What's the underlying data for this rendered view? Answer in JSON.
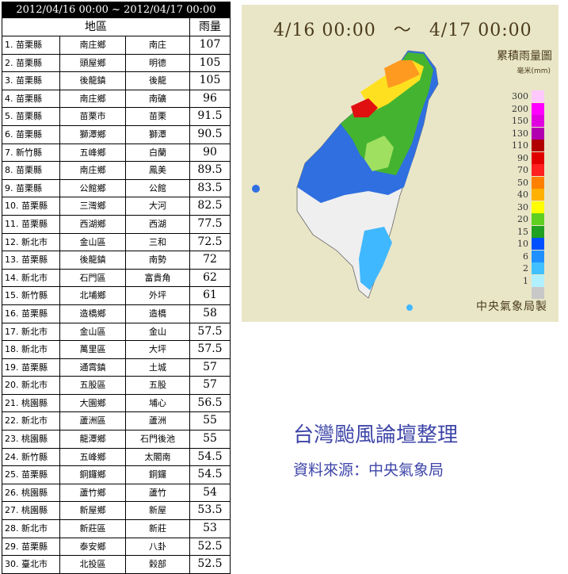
{
  "table": {
    "date_range": "2012/04/16 00:00 ~ 2012/04/17 00:00",
    "col_area": "地區",
    "col_rain": "雨量",
    "rows": [
      [
        "1. 苗栗縣",
        "南庄鄉",
        "南庄",
        "107"
      ],
      [
        "2. 苗栗縣",
        "頭屋鄉",
        "明德",
        "105"
      ],
      [
        "3. 苗栗縣",
        "後龍鎮",
        "後龍",
        "105"
      ],
      [
        "4. 苗栗縣",
        "南庄鄉",
        "南礦",
        "96"
      ],
      [
        "5. 苗栗縣",
        "苗栗市",
        "苗栗",
        "91.5"
      ],
      [
        "6. 苗栗縣",
        "獅潭鄉",
        "獅潭",
        "90.5"
      ],
      [
        "7. 新竹縣",
        "五峰鄉",
        "白蘭",
        "90"
      ],
      [
        "8. 苗栗縣",
        "南庄鄉",
        "鳳美",
        "89.5"
      ],
      [
        "9. 苗栗縣",
        "公館鄉",
        "公館",
        "83.5"
      ],
      [
        "10. 苗栗縣",
        "三灣鄉",
        "大河",
        "82.5"
      ],
      [
        "11. 苗栗縣",
        "西湖鄉",
        "西湖",
        "77.5"
      ],
      [
        "12. 新北市",
        "金山區",
        "三和",
        "72.5"
      ],
      [
        "13. 苗栗縣",
        "後龍鎮",
        "南勢",
        "72"
      ],
      [
        "14. 新北市",
        "石門區",
        "富貴角",
        "62"
      ],
      [
        "15. 新竹縣",
        "北埔鄉",
        "外坪",
        "61"
      ],
      [
        "16. 苗栗縣",
        "造橋鄉",
        "造橋",
        "58"
      ],
      [
        "17. 新北市",
        "金山區",
        "金山",
        "57.5"
      ],
      [
        "18. 新北市",
        "萬里區",
        "大坪",
        "57.5"
      ],
      [
        "19. 苗栗縣",
        "通霄鎮",
        "土城",
        "57"
      ],
      [
        "20. 新北市",
        "五股區",
        "五股",
        "57"
      ],
      [
        "21. 桃園縣",
        "大園鄉",
        "埔心",
        "56.5"
      ],
      [
        "22. 新北市",
        "蘆洲區",
        "蘆洲",
        "55"
      ],
      [
        "23. 桃園縣",
        "龍潭鄉",
        "石門後池",
        "55"
      ],
      [
        "24. 新竹縣",
        "五峰鄉",
        "太閣南",
        "54.5"
      ],
      [
        "25. 苗栗縣",
        "銅鑼鄉",
        "銅鑼",
        "54.5"
      ],
      [
        "26. 桃園縣",
        "蘆竹鄉",
        "蘆竹",
        "54"
      ],
      [
        "27. 桃園縣",
        "新屋鄉",
        "新屋",
        "53.5"
      ],
      [
        "28. 新北市",
        "新莊區",
        "新莊",
        "53"
      ],
      [
        "29. 苗栗縣",
        "泰安鄉",
        "八卦",
        "52.5"
      ],
      [
        "30. 臺北市",
        "北投區",
        "榖部",
        "52.5"
      ]
    ]
  },
  "map": {
    "title_start": "4/16 00:00",
    "title_sep": "～",
    "title_end": "4/17 00:00",
    "legend_title": "累積雨量圖",
    "legend_unit": "毫米(mm)",
    "credit": "中央氣象局製",
    "scale": [
      {
        "label": "300",
        "color": "#ffc8ff"
      },
      {
        "label": "200",
        "color": "#ff00ff"
      },
      {
        "label": "150",
        "color": "#e000e0"
      },
      {
        "label": "130",
        "color": "#b000b0"
      },
      {
        "label": "110",
        "color": "#b00000"
      },
      {
        "label": "90",
        "color": "#e00000"
      },
      {
        "label": "70",
        "color": "#ff2020"
      },
      {
        "label": "50",
        "color": "#ff8000"
      },
      {
        "label": "40",
        "color": "#ffb000"
      },
      {
        "label": "30",
        "color": "#ffff00"
      },
      {
        "label": "20",
        "color": "#60d020"
      },
      {
        "label": "15",
        "color": "#20a020"
      },
      {
        "label": "10",
        "color": "#0050ff"
      },
      {
        "label": "6",
        "color": "#2090ff"
      },
      {
        "label": "2",
        "color": "#40c0ff"
      },
      {
        "label": "1",
        "color": "#b0f0ff"
      },
      {
        "label": "",
        "color": "#c8c8c8"
      }
    ]
  },
  "caption": {
    "forum": "台灣颱風論壇整理",
    "source": "資料來源：中央氣象局"
  }
}
